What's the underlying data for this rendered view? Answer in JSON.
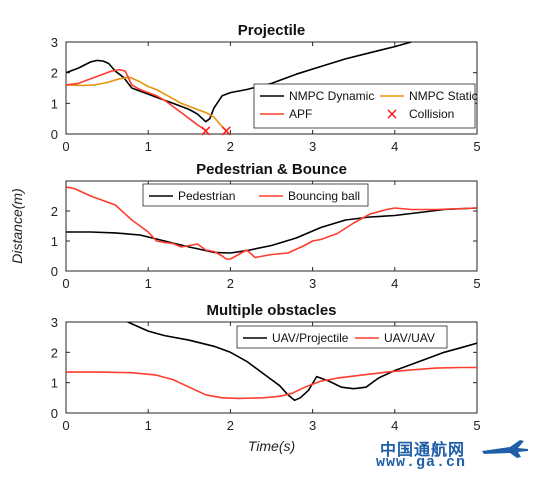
{
  "chart_data": [
    {
      "type": "line",
      "title": "Projectile",
      "xlim": [
        0,
        5
      ],
      "ylim": [
        0,
        3
      ],
      "xticks": [
        "0",
        "1",
        "2",
        "3",
        "4",
        "5"
      ],
      "yticks": [
        "0",
        "1",
        "2",
        "3"
      ],
      "grid": false,
      "legend": {
        "placement": "right",
        "columns": 2
      },
      "series": [
        {
          "name": "NMPC Dynamic",
          "color": "#000000",
          "x": [
            0,
            0.15,
            0.3,
            0.38,
            0.45,
            0.52,
            0.6,
            0.7,
            0.8,
            0.9,
            1.0,
            1.1,
            1.2,
            1.3,
            1.4,
            1.5,
            1.6,
            1.7,
            1.75,
            1.8,
            1.9,
            2.0,
            2.2,
            2.5,
            2.8,
            3.1,
            3.4,
            3.7,
            4.0,
            4.2
          ],
          "y": [
            2.0,
            2.15,
            2.35,
            2.4,
            2.38,
            2.3,
            2.05,
            1.85,
            1.5,
            1.4,
            1.3,
            1.2,
            1.1,
            1.0,
            0.9,
            0.8,
            0.65,
            0.4,
            0.5,
            0.85,
            1.25,
            1.35,
            1.45,
            1.65,
            1.95,
            2.2,
            2.45,
            2.65,
            2.85,
            3.0
          ]
        },
        {
          "name": "NMPC Static",
          "color": "#e8930c",
          "x": [
            0,
            0.2,
            0.35,
            0.5,
            0.65,
            0.78,
            0.9,
            1.0,
            1.1,
            1.2,
            1.3,
            1.4,
            1.5,
            1.6,
            1.7,
            1.8,
            1.88,
            1.95
          ],
          "y": [
            1.6,
            1.58,
            1.6,
            1.68,
            1.8,
            1.85,
            1.7,
            1.55,
            1.45,
            1.3,
            1.15,
            1.0,
            0.9,
            0.8,
            0.7,
            0.55,
            0.3,
            0.1
          ]
        },
        {
          "name": "APF",
          "color": "#ff3c2e",
          "x": [
            0,
            0.15,
            0.3,
            0.45,
            0.55,
            0.65,
            0.72,
            0.8,
            0.9,
            1.0,
            1.1,
            1.2,
            1.3,
            1.4,
            1.5,
            1.6,
            1.7
          ],
          "y": [
            1.6,
            1.65,
            1.8,
            1.95,
            2.05,
            2.1,
            2.05,
            1.6,
            1.45,
            1.35,
            1.25,
            1.1,
            0.9,
            0.7,
            0.5,
            0.3,
            0.12
          ]
        }
      ],
      "markers": {
        "name": "Collision",
        "color": "#ff1a1a",
        "symbol": "x",
        "points": [
          {
            "x": 1.7,
            "y": 0.1
          },
          {
            "x": 1.95,
            "y": 0.1
          }
        ]
      }
    },
    {
      "type": "line",
      "title": "Pedestrian & Bounce",
      "xlim": [
        0,
        5
      ],
      "ylim": [
        0,
        3
      ],
      "xticks": [
        "0",
        "1",
        "2",
        "3",
        "4",
        "5"
      ],
      "yticks": [
        "0",
        "1",
        "2"
      ],
      "ylabel": "Distance(m)",
      "grid": false,
      "legend": {
        "placement": "top-left",
        "columns": 2
      },
      "series": [
        {
          "name": "Pedestrian",
          "color": "#000000",
          "x": [
            0,
            0.3,
            0.6,
            0.9,
            1.2,
            1.5,
            1.8,
            2.0,
            2.2,
            2.5,
            2.8,
            3.1,
            3.4,
            3.7,
            4.0,
            4.3,
            4.6,
            5.0
          ],
          "y": [
            1.3,
            1.3,
            1.27,
            1.2,
            1.0,
            0.8,
            0.62,
            0.6,
            0.68,
            0.85,
            1.1,
            1.45,
            1.7,
            1.8,
            1.85,
            1.95,
            2.05,
            2.1
          ]
        },
        {
          "name": "Bouncing ball",
          "color": "#ff3c2e",
          "x": [
            0,
            0.1,
            0.3,
            0.6,
            0.8,
            1.0,
            1.1,
            1.2,
            1.3,
            1.4,
            1.5,
            1.6,
            1.7,
            1.8,
            1.9,
            1.95,
            2.0,
            2.1,
            2.2,
            2.3,
            2.4,
            2.5,
            2.7,
            2.9,
            3.0,
            3.1,
            3.2,
            3.3,
            3.5,
            3.7,
            3.9,
            4.0,
            4.2,
            4.5,
            5.0
          ],
          "y": [
            2.8,
            2.75,
            2.5,
            2.2,
            1.7,
            1.3,
            1.0,
            0.95,
            0.92,
            0.8,
            0.85,
            0.9,
            0.7,
            0.65,
            0.5,
            0.4,
            0.4,
            0.55,
            0.7,
            0.45,
            0.5,
            0.55,
            0.6,
            0.85,
            1.0,
            1.05,
            1.15,
            1.25,
            1.6,
            1.9,
            2.05,
            2.1,
            2.05,
            2.05,
            2.1
          ]
        }
      ]
    },
    {
      "type": "line",
      "title": "Multiple obstacles",
      "xlim": [
        0,
        5
      ],
      "ylim": [
        0,
        3
      ],
      "xticks": [
        "0",
        "1",
        "2",
        "3",
        "4",
        "5"
      ],
      "yticks": [
        "0",
        "1",
        "2",
        "3"
      ],
      "xlabel": "Time(s)",
      "grid": false,
      "legend": {
        "placement": "top-right",
        "columns": 2
      },
      "series": [
        {
          "name": "UAV/Projectile",
          "color": "#000000",
          "x": [
            0.75,
            1.0,
            1.2,
            1.5,
            1.8,
            2.0,
            2.2,
            2.4,
            2.6,
            2.7,
            2.78,
            2.85,
            2.95,
            3.05,
            3.2,
            3.35,
            3.5,
            3.65,
            3.8,
            4.0,
            4.2,
            4.4,
            4.6,
            4.8,
            5.0
          ],
          "y": [
            3.0,
            2.7,
            2.55,
            2.4,
            2.2,
            2.0,
            1.7,
            1.3,
            0.9,
            0.6,
            0.42,
            0.5,
            0.75,
            1.2,
            1.05,
            0.85,
            0.8,
            0.85,
            1.15,
            1.4,
            1.6,
            1.8,
            2.0,
            2.15,
            2.3
          ]
        },
        {
          "name": "UAV/UAV",
          "color": "#ff3c2e",
          "x": [
            0,
            0.4,
            0.8,
            1.1,
            1.3,
            1.5,
            1.7,
            1.9,
            2.1,
            2.4,
            2.6,
            2.75,
            2.85,
            2.95,
            3.1,
            3.3,
            3.6,
            3.9,
            4.2,
            4.5,
            4.8,
            5.0
          ],
          "y": [
            1.35,
            1.35,
            1.33,
            1.25,
            1.1,
            0.85,
            0.6,
            0.5,
            0.48,
            0.5,
            0.55,
            0.65,
            0.78,
            0.9,
            1.05,
            1.15,
            1.25,
            1.35,
            1.42,
            1.48,
            1.5,
            1.5
          ]
        }
      ]
    }
  ],
  "watermark": {
    "site_name": "中国通航网",
    "url": "www.ga.cn",
    "color": "#1f5fa8"
  }
}
